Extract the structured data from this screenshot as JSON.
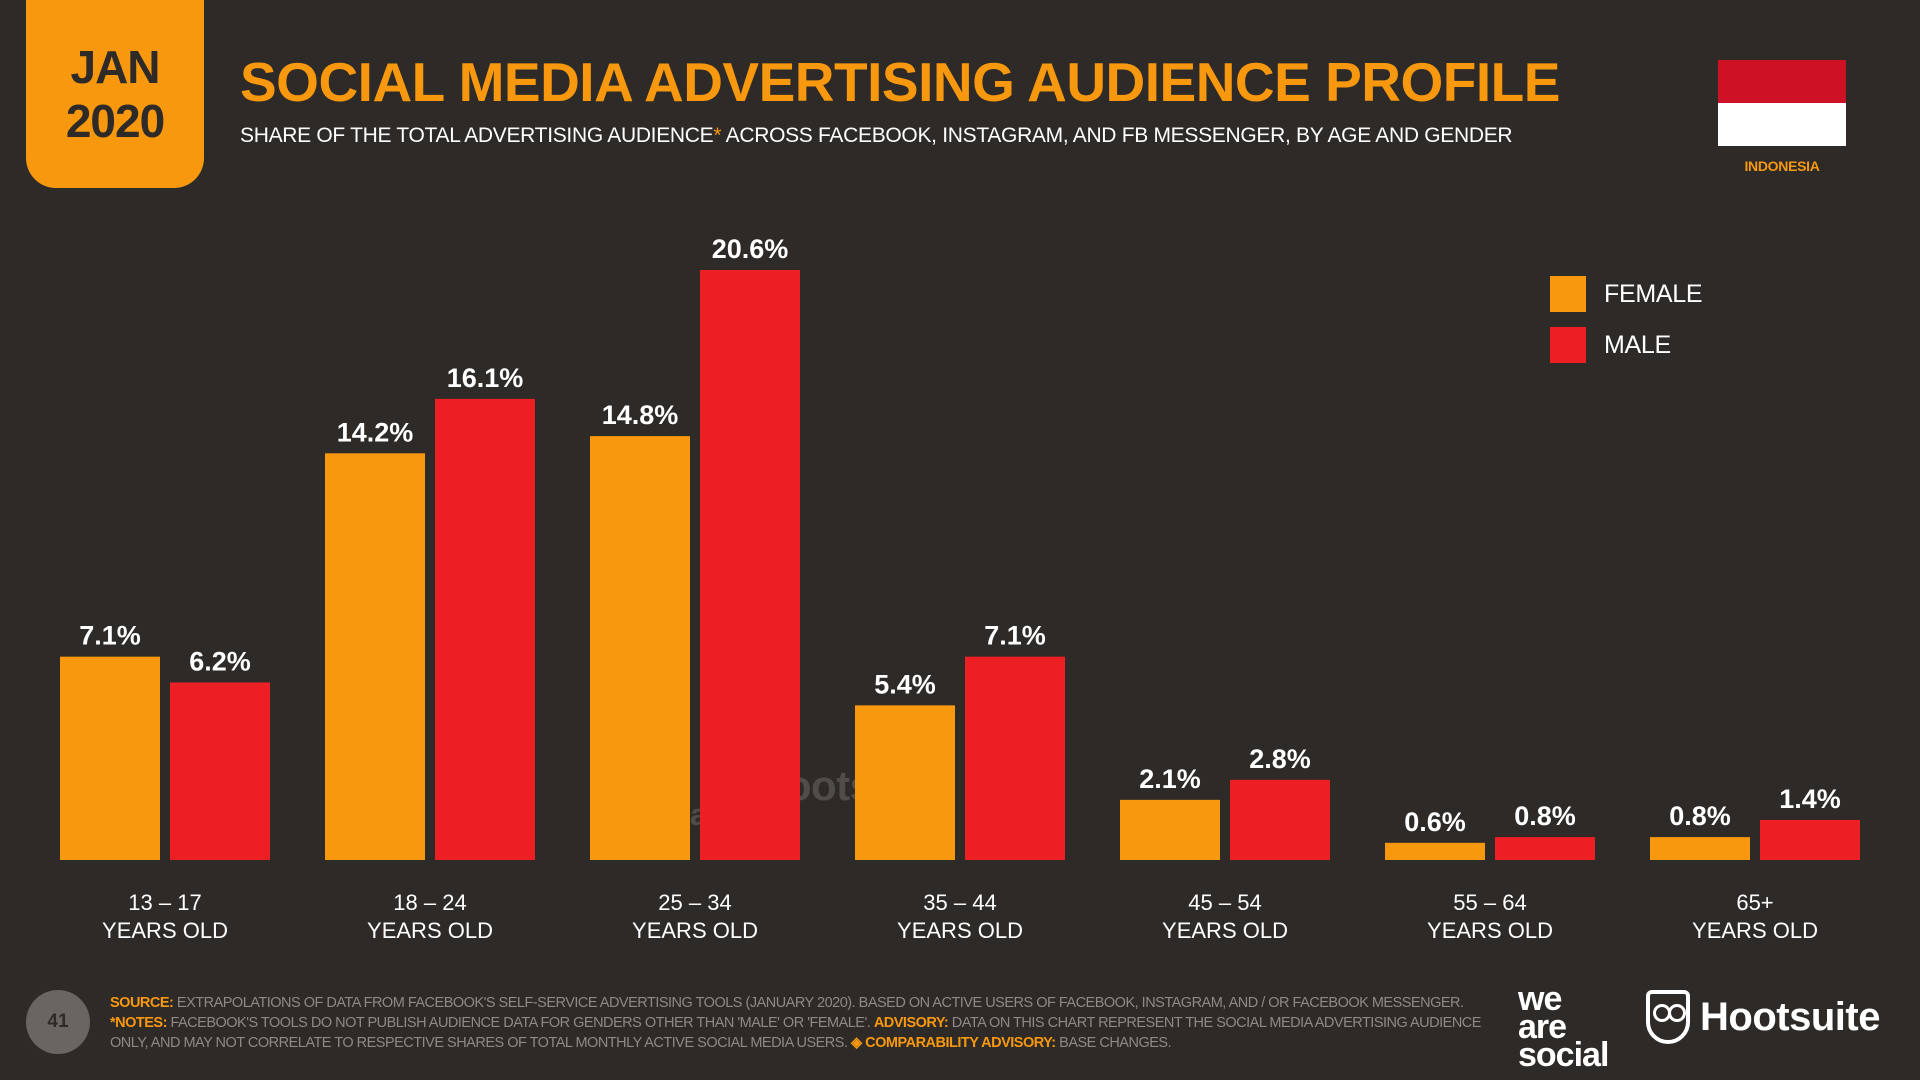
{
  "badge": {
    "month": "JAN",
    "year": "2020"
  },
  "header": {
    "title": "SOCIAL MEDIA ADVERTISING AUDIENCE PROFILE",
    "subtitle_pre": "SHARE OF THE TOTAL ADVERTISING AUDIENCE",
    "subtitle_asterisk": "*",
    "subtitle_post": " ACROSS FACEBOOK, INSTAGRAM, AND FB MESSENGER, BY AGE AND GENDER"
  },
  "country": "INDONESIA",
  "colors": {
    "female": "#f7980f",
    "male": "#eb1f24",
    "background": "#2e2a27",
    "flag_red": "#cf1126",
    "flag_white": "#ffffff"
  },
  "chart_data": {
    "type": "bar",
    "categories": [
      "13 – 17\nYEARS OLD",
      "18 – 24\nYEARS OLD",
      "25 – 34\nYEARS OLD",
      "35 – 44\nYEARS OLD",
      "45 – 54\nYEARS OLD",
      "55 – 64\nYEARS OLD",
      "65+\nYEARS OLD"
    ],
    "series": [
      {
        "name": "FEMALE",
        "values": [
          7.1,
          14.2,
          14.8,
          5.4,
          2.1,
          0.6,
          0.8
        ],
        "labels": [
          "7.1%",
          "14.2%",
          "14.8%",
          "5.4%",
          "2.1%",
          "0.6%",
          "0.8%"
        ]
      },
      {
        "name": "MALE",
        "values": [
          6.2,
          16.1,
          20.6,
          7.1,
          2.8,
          0.8,
          1.4
        ],
        "labels": [
          "6.2%",
          "16.1%",
          "20.6%",
          "7.1%",
          "2.8%",
          "0.8%",
          "1.4%"
        ]
      }
    ],
    "ylim": [
      0,
      20.6
    ],
    "legend": "top-right",
    "grid": false
  },
  "legend": {
    "female": "FEMALE",
    "male": "MALE"
  },
  "watermark": {
    "was": [
      "we",
      "are",
      "social"
    ],
    "hootsuite": "Hootsuite"
  },
  "footer": {
    "page_number": "41",
    "source_label": "SOURCE:",
    "source_text": " EXTRAPOLATIONS OF DATA FROM FACEBOOK'S SELF-SERVICE ADVERTISING TOOLS (JANUARY 2020). BASED ON ACTIVE USERS OF FACEBOOK, INSTAGRAM, AND / OR FACEBOOK MESSENGER. ",
    "notes_label": "*NOTES:",
    "notes_text": " FACEBOOK'S TOOLS DO NOT PUBLISH AUDIENCE DATA FOR GENDERS OTHER THAN 'MALE' OR 'FEMALE'. ",
    "advisory_label": "ADVISORY:",
    "advisory_text": " DATA ON THIS CHART REPRESENT THE SOCIAL MEDIA ADVERTISING AUDIENCE ONLY, AND MAY NOT CORRELATE TO RESPECTIVE SHARES OF TOTAL MONTHLY ACTIVE SOCIAL MEDIA USERS. ",
    "comparability_label": "◈ COMPARABILITY ADVISORY:",
    "comparability_text": " BASE CHANGES."
  },
  "logos": {
    "was": [
      "we",
      "are",
      "social"
    ],
    "hootsuite": "Hootsuite"
  }
}
